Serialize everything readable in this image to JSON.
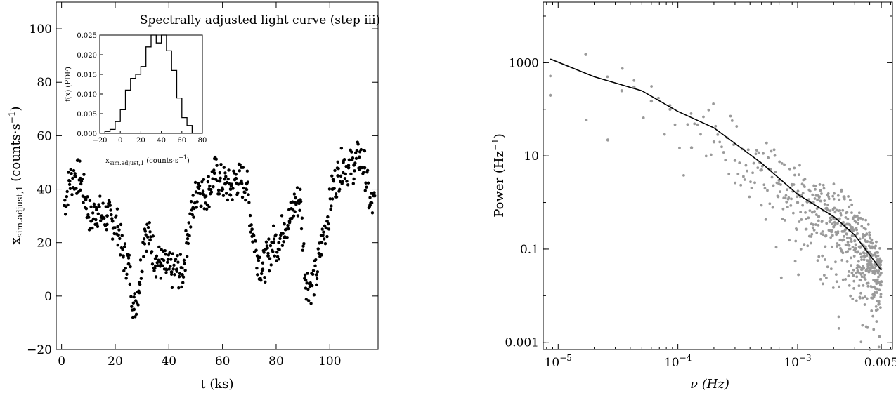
{
  "chart_data": [
    {
      "type": "scatter",
      "title": "Spectrally adjusted light curve (step iii)",
      "xlabel": "t (ks)",
      "ylabel": "x_sim.adjust,1 (counts·s^-1)",
      "ylabel_main": "x",
      "ylabel_sub": "sim.adjust,1",
      "ylabel_units": " (counts·s",
      "ylabel_exp": "−1",
      "ylabel_close": ")",
      "xlim": [
        -2,
        118
      ],
      "ylim": [
        -20,
        110
      ],
      "x_ticks": [
        0,
        20,
        40,
        60,
        80,
        100
      ],
      "y_ticks": [
        -20,
        0,
        20,
        40,
        60,
        80,
        100
      ],
      "grid": false,
      "marker_color": "#000000",
      "series": [
        {
          "x": [
            1,
            3,
            5,
            7,
            9,
            11,
            13,
            15,
            17,
            19,
            21,
            23,
            25,
            27,
            29,
            31,
            33,
            35,
            37,
            39,
            41,
            43,
            45,
            47,
            49,
            51,
            53,
            55,
            57,
            59,
            61,
            63,
            65,
            67,
            69,
            71,
            73,
            75,
            77,
            79,
            81,
            83,
            85,
            87,
            89,
            91,
            93,
            95,
            97,
            99,
            101,
            103,
            105,
            107,
            109,
            111,
            113,
            115
          ],
          "y": [
            34,
            43,
            45,
            44,
            36,
            28,
            33,
            30,
            30,
            28,
            26,
            15,
            12,
            -5,
            5,
            25,
            21,
            14,
            12,
            10,
            9,
            10,
            8,
            23,
            33,
            42,
            38,
            40,
            46,
            43,
            42,
            40,
            44,
            43,
            42,
            25,
            15,
            10,
            15,
            20,
            20,
            27,
            28,
            35,
            36,
            6,
            4,
            8,
            20,
            28,
            40,
            45,
            50,
            48,
            49,
            52,
            48,
            34
          ]
        }
      ]
    },
    {
      "type": "histogram",
      "xlabel": "x_sim.adjust,1 (counts·s^-1)",
      "xlabel_main": "x",
      "xlabel_sub": "sim.adjust,1",
      "xlabel_units": " (counts·s",
      "xlabel_exp": "−1",
      "xlabel_close": ")",
      "ylabel": "f(x) (PDF)",
      "xlim": [
        -20,
        80
      ],
      "ylim": [
        0,
        0.025
      ],
      "x_ticks": [
        -20,
        0,
        20,
        40,
        60,
        80
      ],
      "y_ticks": [
        "0.000",
        "0.005",
        "0.010",
        "0.015",
        "0.020",
        "0.025"
      ],
      "bin_edges": [
        -15,
        -10,
        -5,
        0,
        5,
        10,
        15,
        20,
        25,
        30,
        35,
        40,
        45,
        50,
        55,
        60,
        65,
        70
      ],
      "values": [
        0.0005,
        0.001,
        0.003,
        0.006,
        0.011,
        0.014,
        0.015,
        0.017,
        0.022,
        0.026,
        0.023,
        0.025,
        0.021,
        0.016,
        0.009,
        0.004,
        0.002
      ]
    },
    {
      "type": "scatter",
      "scale": "log-log",
      "xlabel": "ν (Hz)",
      "ylabel": "Power (Hz^-1)",
      "ylabel_main": "Power (Hz",
      "ylabel_exp": "−1",
      "ylabel_close": ")",
      "xlim": [
        7.5e-06,
        0.0062
      ],
      "ylim": [
        0.0007,
        20000
      ],
      "x_ticks": [
        {
          "value": 1e-05,
          "base": "10",
          "exp": "−5"
        },
        {
          "value": 0.0001,
          "base": "10",
          "exp": "−4"
        },
        {
          "value": 0.001,
          "base": "10",
          "exp": "−3"
        },
        {
          "value": 0.005,
          "label": "0.005"
        }
      ],
      "y_ticks": [
        {
          "value": 0.001,
          "label": "0.001"
        },
        {
          "value": 0.1,
          "label": "0.1"
        },
        {
          "value": 10,
          "label": "10"
        },
        {
          "value": 1000,
          "label": "1000"
        }
      ],
      "grid": false,
      "point_color": "#9a9a9a",
      "line_color": "#000000",
      "series": [
        {
          "x": [
            8.6e-06,
            1.7e-05,
            2.6e-05,
            3.4e-05,
            4.3e-05,
            6e-05,
            8.6e-05,
            0.00013,
            0.0002,
            0.0003,
            0.0005,
            0.0007,
            0.001,
            0.0015,
            0.002,
            0.003,
            0.004,
            0.005
          ],
          "y": [
            200,
            1500,
            22,
            250,
            300,
            150,
            100,
            15,
            20,
            8,
            5,
            3,
            1,
            0.5,
            0.3,
            0.15,
            0.05,
            0.02
          ]
        },
        {
          "x": [
            8.6e-06,
            2e-05,
            5e-05,
            0.0001,
            0.0002,
            0.0005,
            0.001,
            0.002,
            0.003,
            0.005
          ],
          "y": [
            1200,
            500,
            250,
            90,
            40,
            7,
            1.5,
            0.5,
            0.2,
            0.035
          ]
        }
      ]
    }
  ]
}
